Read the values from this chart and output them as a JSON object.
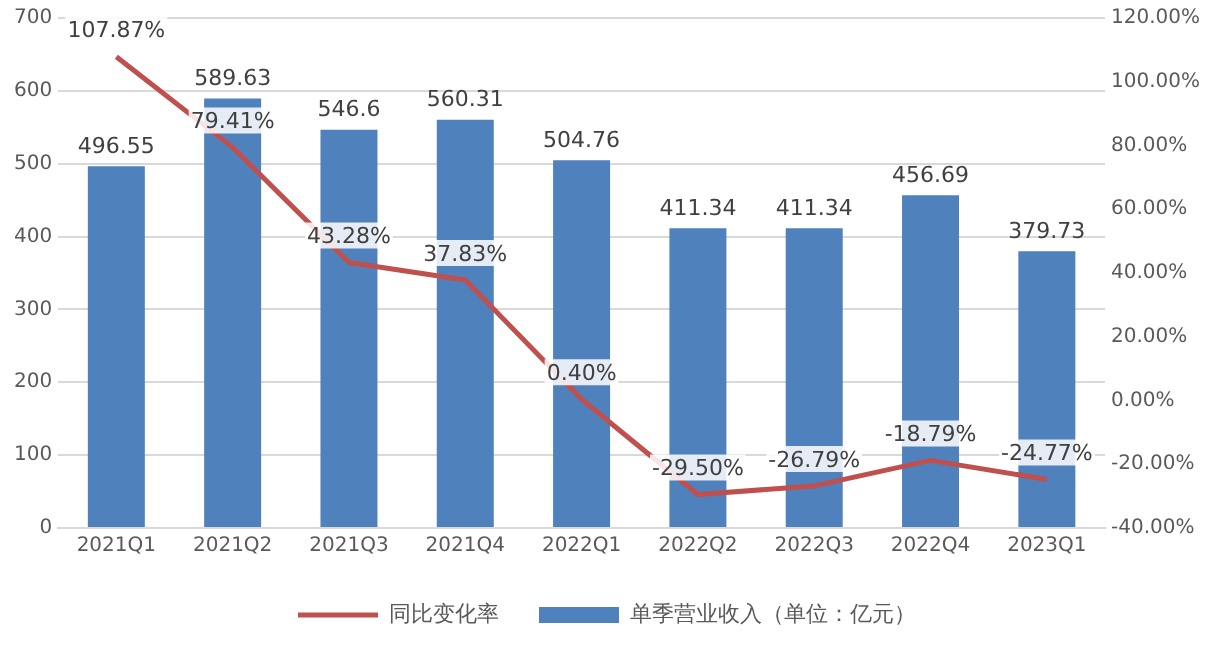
{
  "chart_data": {
    "type": "bar",
    "categories": [
      "2021Q1",
      "2021Q2",
      "2021Q3",
      "2021Q4",
      "2022Q1",
      "2022Q2",
      "2022Q3",
      "2022Q4",
      "2023Q1"
    ],
    "series": [
      {
        "name": "单季营业收入（单位：亿元）",
        "color": "#4f81bd",
        "values": [
          496.55,
          589.63,
          546.6,
          560.31,
          504.76,
          411.34,
          411.34,
          456.69,
          379.73
        ],
        "value_labels": [
          "496.55",
          "589.63",
          "546.6",
          "560.31",
          "504.76",
          "411.34",
          "411.34",
          "456.69",
          "379.73"
        ]
      },
      {
        "name": "同比变化率",
        "type": "line",
        "axis": "y2",
        "color": "#c0504d",
        "values": [
          107.87,
          79.41,
          43.28,
          37.83,
          0.4,
          -29.5,
          -26.79,
          -18.79,
          -24.77
        ],
        "value_labels": [
          "107.87%",
          "79.41%",
          "43.28%",
          "37.83%",
          "0.40%",
          "-29.50%",
          "-26.79%",
          "-18.79%",
          "-24.77%"
        ]
      }
    ],
    "ylim": [
      0,
      700
    ],
    "yticks": [
      0,
      100,
      200,
      300,
      400,
      500,
      600,
      700
    ],
    "y2lim": [
      -40,
      120
    ],
    "y2ticks": [
      {
        "value": -40,
        "label": "-40.00%"
      },
      {
        "value": -20,
        "label": "-20.00%"
      },
      {
        "value": 0,
        "label": "0.00%"
      },
      {
        "value": 20,
        "label": "20.00%"
      },
      {
        "value": 40,
        "label": "40.00%"
      },
      {
        "value": 60,
        "label": "60.00%"
      },
      {
        "value": 80,
        "label": "80.00%"
      },
      {
        "value": 100,
        "label": "100.00%"
      },
      {
        "value": 120,
        "label": "120.00%"
      }
    ],
    "grid": "y",
    "legend": "bottom",
    "marker": "none",
    "line_style": "solid"
  }
}
